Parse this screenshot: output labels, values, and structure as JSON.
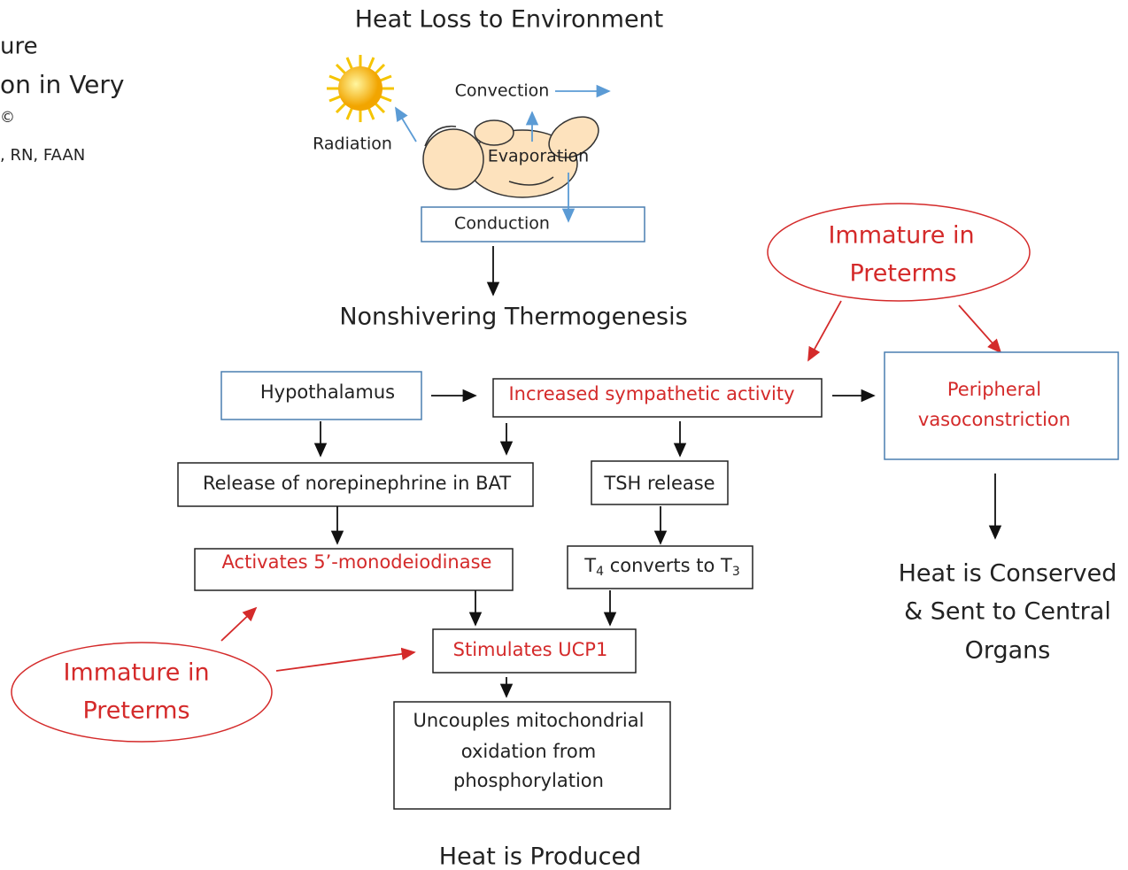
{
  "title": "Heat Loss to Environment",
  "side_text": [
    "ure",
    "on in Very",
    "©",
    ", RN, FAAN"
  ],
  "heat_loss": {
    "radiation": "Radiation",
    "convection": "Convection",
    "evaporation": "Evaporation",
    "conduction": "Conduction"
  },
  "mechanism": "Nonshivering Thermogenesis",
  "nodes": {
    "hypothalamus": "Hypothalamus",
    "sympathetic": "Increased sympathetic activity",
    "vasoconstriction": [
      "Peripheral",
      "vasoconstriction"
    ],
    "norepinephrine": "Release of norepinephrine in BAT",
    "tsh": "TSH release",
    "monodeiodinase": "Activates 5’-monodeiodinase",
    "t4": [
      "T",
      "4",
      " converts to T",
      "3"
    ],
    "ucp1": "Stimulates UCP1",
    "uncouples": [
      "Uncouples mitochondrial",
      "oxidation from",
      "phosphorylation"
    ]
  },
  "immature_top": [
    "Immature in",
    "Preterms"
  ],
  "immature_left": [
    "Immature in",
    "Preterms"
  ],
  "conserved": [
    "Heat is Conserved",
    "& Sent to Central",
    "Organs"
  ],
  "produced": "Heat is Produced"
}
